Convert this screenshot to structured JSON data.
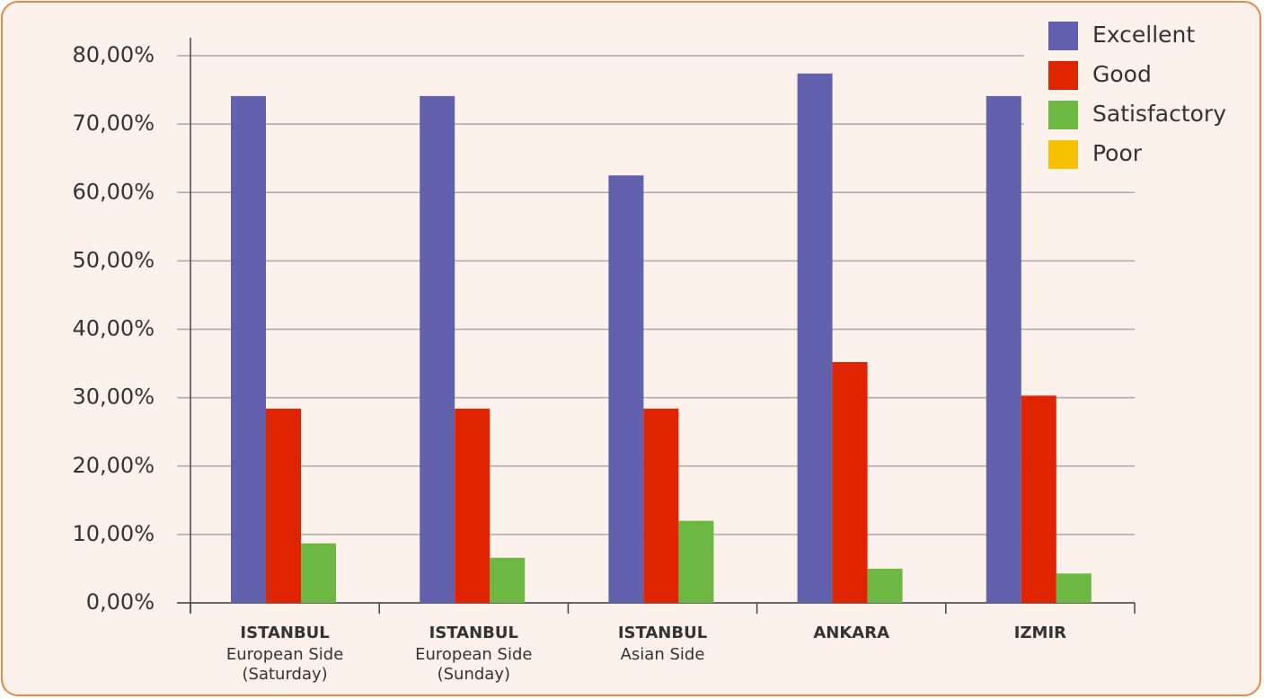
{
  "chart_data": {
    "type": "bar",
    "categories": [
      "ISTANBUL",
      "ISTANBUL",
      "ISTANBUL",
      "ANKARA",
      "IZMIR"
    ],
    "category_sublabels": [
      [
        "European Side",
        "(Saturday)"
      ],
      [
        "European Side",
        "(Sunday)"
      ],
      [
        "Asian Side"
      ],
      [],
      []
    ],
    "series": [
      {
        "name": "Excellent",
        "color": "#6261ad",
        "values": [
          74.1,
          74.1,
          62.5,
          77.4,
          74.1
        ]
      },
      {
        "name": "Good",
        "color": "#e02400",
        "values": [
          28.4,
          28.4,
          28.4,
          35.2,
          30.3
        ]
      },
      {
        "name": "Satisfactory",
        "color": "#6cb842",
        "values": [
          8.7,
          6.6,
          12.0,
          5.0,
          4.3
        ]
      },
      {
        "name": "Poor",
        "color": "#f6c100",
        "values": [
          0,
          0,
          0,
          0,
          0
        ]
      }
    ],
    "ylim": [
      0,
      80
    ],
    "yticks": [
      {
        "value": 0,
        "label": "0,00%"
      },
      {
        "value": 10,
        "label": "10,00%"
      },
      {
        "value": 20,
        "label": "20,00%"
      },
      {
        "value": 30,
        "label": "30,00%"
      },
      {
        "value": 40,
        "label": "40,00%"
      },
      {
        "value": 50,
        "label": "50,00%"
      },
      {
        "value": 60,
        "label": "60,00%"
      },
      {
        "value": 70,
        "label": "70,00%"
      },
      {
        "value": 80,
        "label": "80,00%"
      }
    ],
    "grid": true,
    "legend": "top-right"
  }
}
